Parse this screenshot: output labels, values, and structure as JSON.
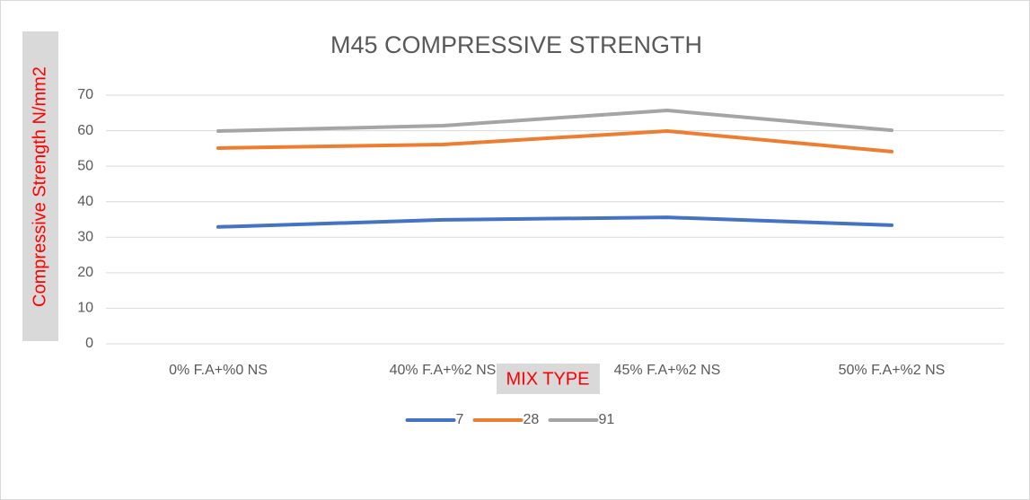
{
  "chart_data": {
    "type": "line",
    "title": "M45 COMPRESSIVE STRENGTH",
    "x_label": "MIX TYPE",
    "y_label": "Compressive Strength N/mm2",
    "categories": [
      "0% F.A+%0 NS",
      "40% F.A+%2 NS",
      "45% F.A+%2 NS",
      "50% F.A+%2 NS"
    ],
    "series": [
      {
        "name": "7",
        "color": "#4472c4",
        "values": [
          32.9,
          34.9,
          35.6,
          33.4
        ]
      },
      {
        "name": "28",
        "color": "#ed7d31",
        "values": [
          55.1,
          56.1,
          59.9,
          54.1
        ]
      },
      {
        "name": "91",
        "color": "#a5a5a5",
        "values": [
          59.9,
          61.4,
          65.7,
          60.1
        ]
      }
    ],
    "ylim": [
      0,
      70
    ],
    "yticks": [
      0,
      10,
      20,
      30,
      40,
      50,
      60,
      70
    ],
    "grid": true,
    "legend": "bottom"
  }
}
